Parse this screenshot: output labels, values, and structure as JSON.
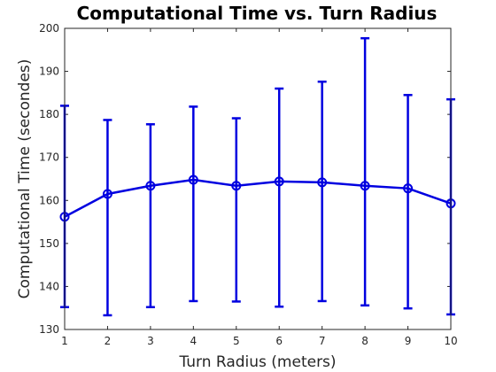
{
  "chart_data": {
    "type": "line",
    "title": "Computational Time vs. Turn Radius",
    "xlabel": "Turn Radius (meters)",
    "ylabel": "Computational Time (secondes)",
    "xlim": [
      1,
      10
    ],
    "ylim": [
      130,
      200
    ],
    "xticks": [
      1,
      2,
      3,
      4,
      5,
      6,
      7,
      8,
      9,
      10
    ],
    "yticks": [
      130,
      140,
      150,
      160,
      170,
      180,
      190,
      200
    ],
    "grid": false,
    "error_bars": true,
    "series_color": "#0000e0",
    "series": [
      {
        "x": [
          1,
          2,
          3,
          4,
          5,
          6,
          7,
          8,
          9,
          10
        ],
        "y": [
          156.2,
          161.5,
          163.4,
          164.8,
          163.4,
          164.4,
          164.2,
          163.4,
          162.8,
          159.3
        ],
        "lower": [
          135.2,
          133.3,
          135.2,
          136.6,
          136.5,
          135.3,
          136.6,
          135.6,
          134.9,
          133.5
        ],
        "upper": [
          182.0,
          178.7,
          177.7,
          181.8,
          179.1,
          186.0,
          187.6,
          197.7,
          184.5,
          183.5
        ],
        "marker": "circle"
      }
    ]
  }
}
